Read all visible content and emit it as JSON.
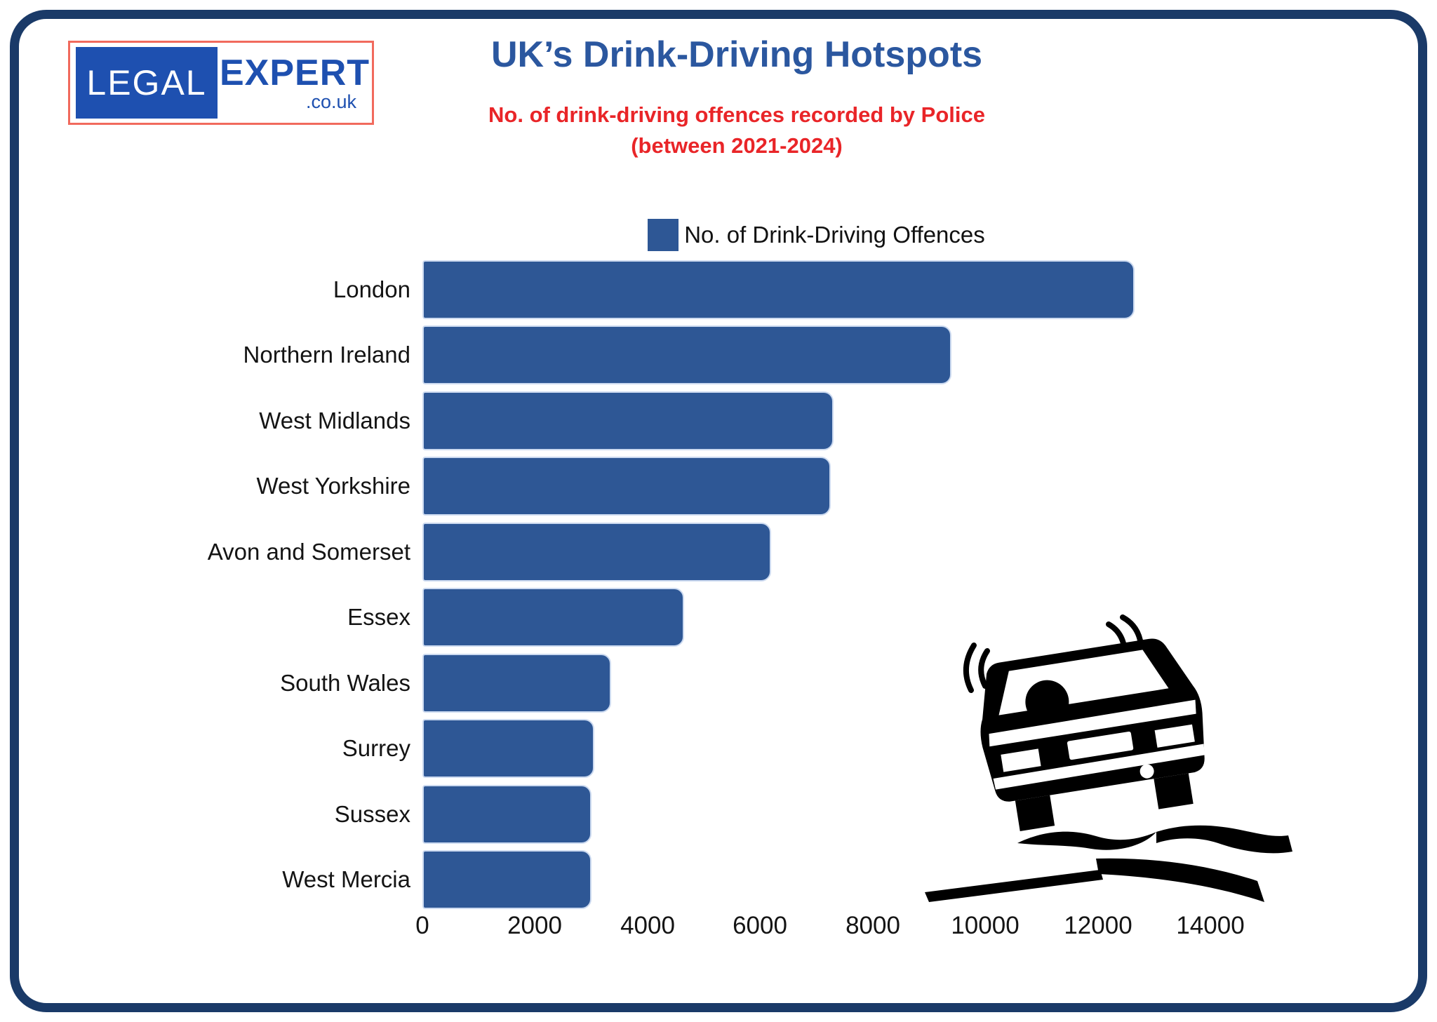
{
  "logo": {
    "legal": "LEGAL",
    "expert": "EXPERT",
    "domain": ".co.uk"
  },
  "header": {
    "title": "UK’s Drink-Driving Hotspots",
    "subtitle_line1": "No. of drink-driving offences recorded by Police",
    "subtitle_line2": "(between 2021-2024)"
  },
  "legend": {
    "label": "No. of Drink-Driving Offences"
  },
  "colors": {
    "bar": "#2e5795",
    "frame": "#1a3a68",
    "title_blue": "#2b579f",
    "subtitle_red": "#e92528",
    "logo_blue": "#1e50b0",
    "logo_border": "#f16a5d",
    "car_black": "#000000"
  },
  "chart_data": {
    "type": "bar",
    "orientation": "horizontal",
    "title": "UK’s Drink-Driving Hotspots",
    "subtitle": "No. of drink-driving offences recorded by Police (between 2021-2024)",
    "legend": [
      "No. of Drink-Driving Offences"
    ],
    "legend_position": "top",
    "categories": [
      "London",
      "Northern Ireland",
      "West Midlands",
      "West Yorkshire",
      "Avon and Somerset",
      "Essex",
      "South Wales",
      "Surrey",
      "Sussex",
      "West Mercia"
    ],
    "values": [
      12650,
      9400,
      7300,
      7250,
      6200,
      4650,
      3350,
      3050,
      3000,
      3000
    ],
    "xlabel": "",
    "ylabel": "",
    "xlim": [
      0,
      14000
    ],
    "xticks": [
      0,
      2000,
      4000,
      6000,
      8000,
      10000,
      12000,
      14000
    ],
    "gridlines": false
  }
}
